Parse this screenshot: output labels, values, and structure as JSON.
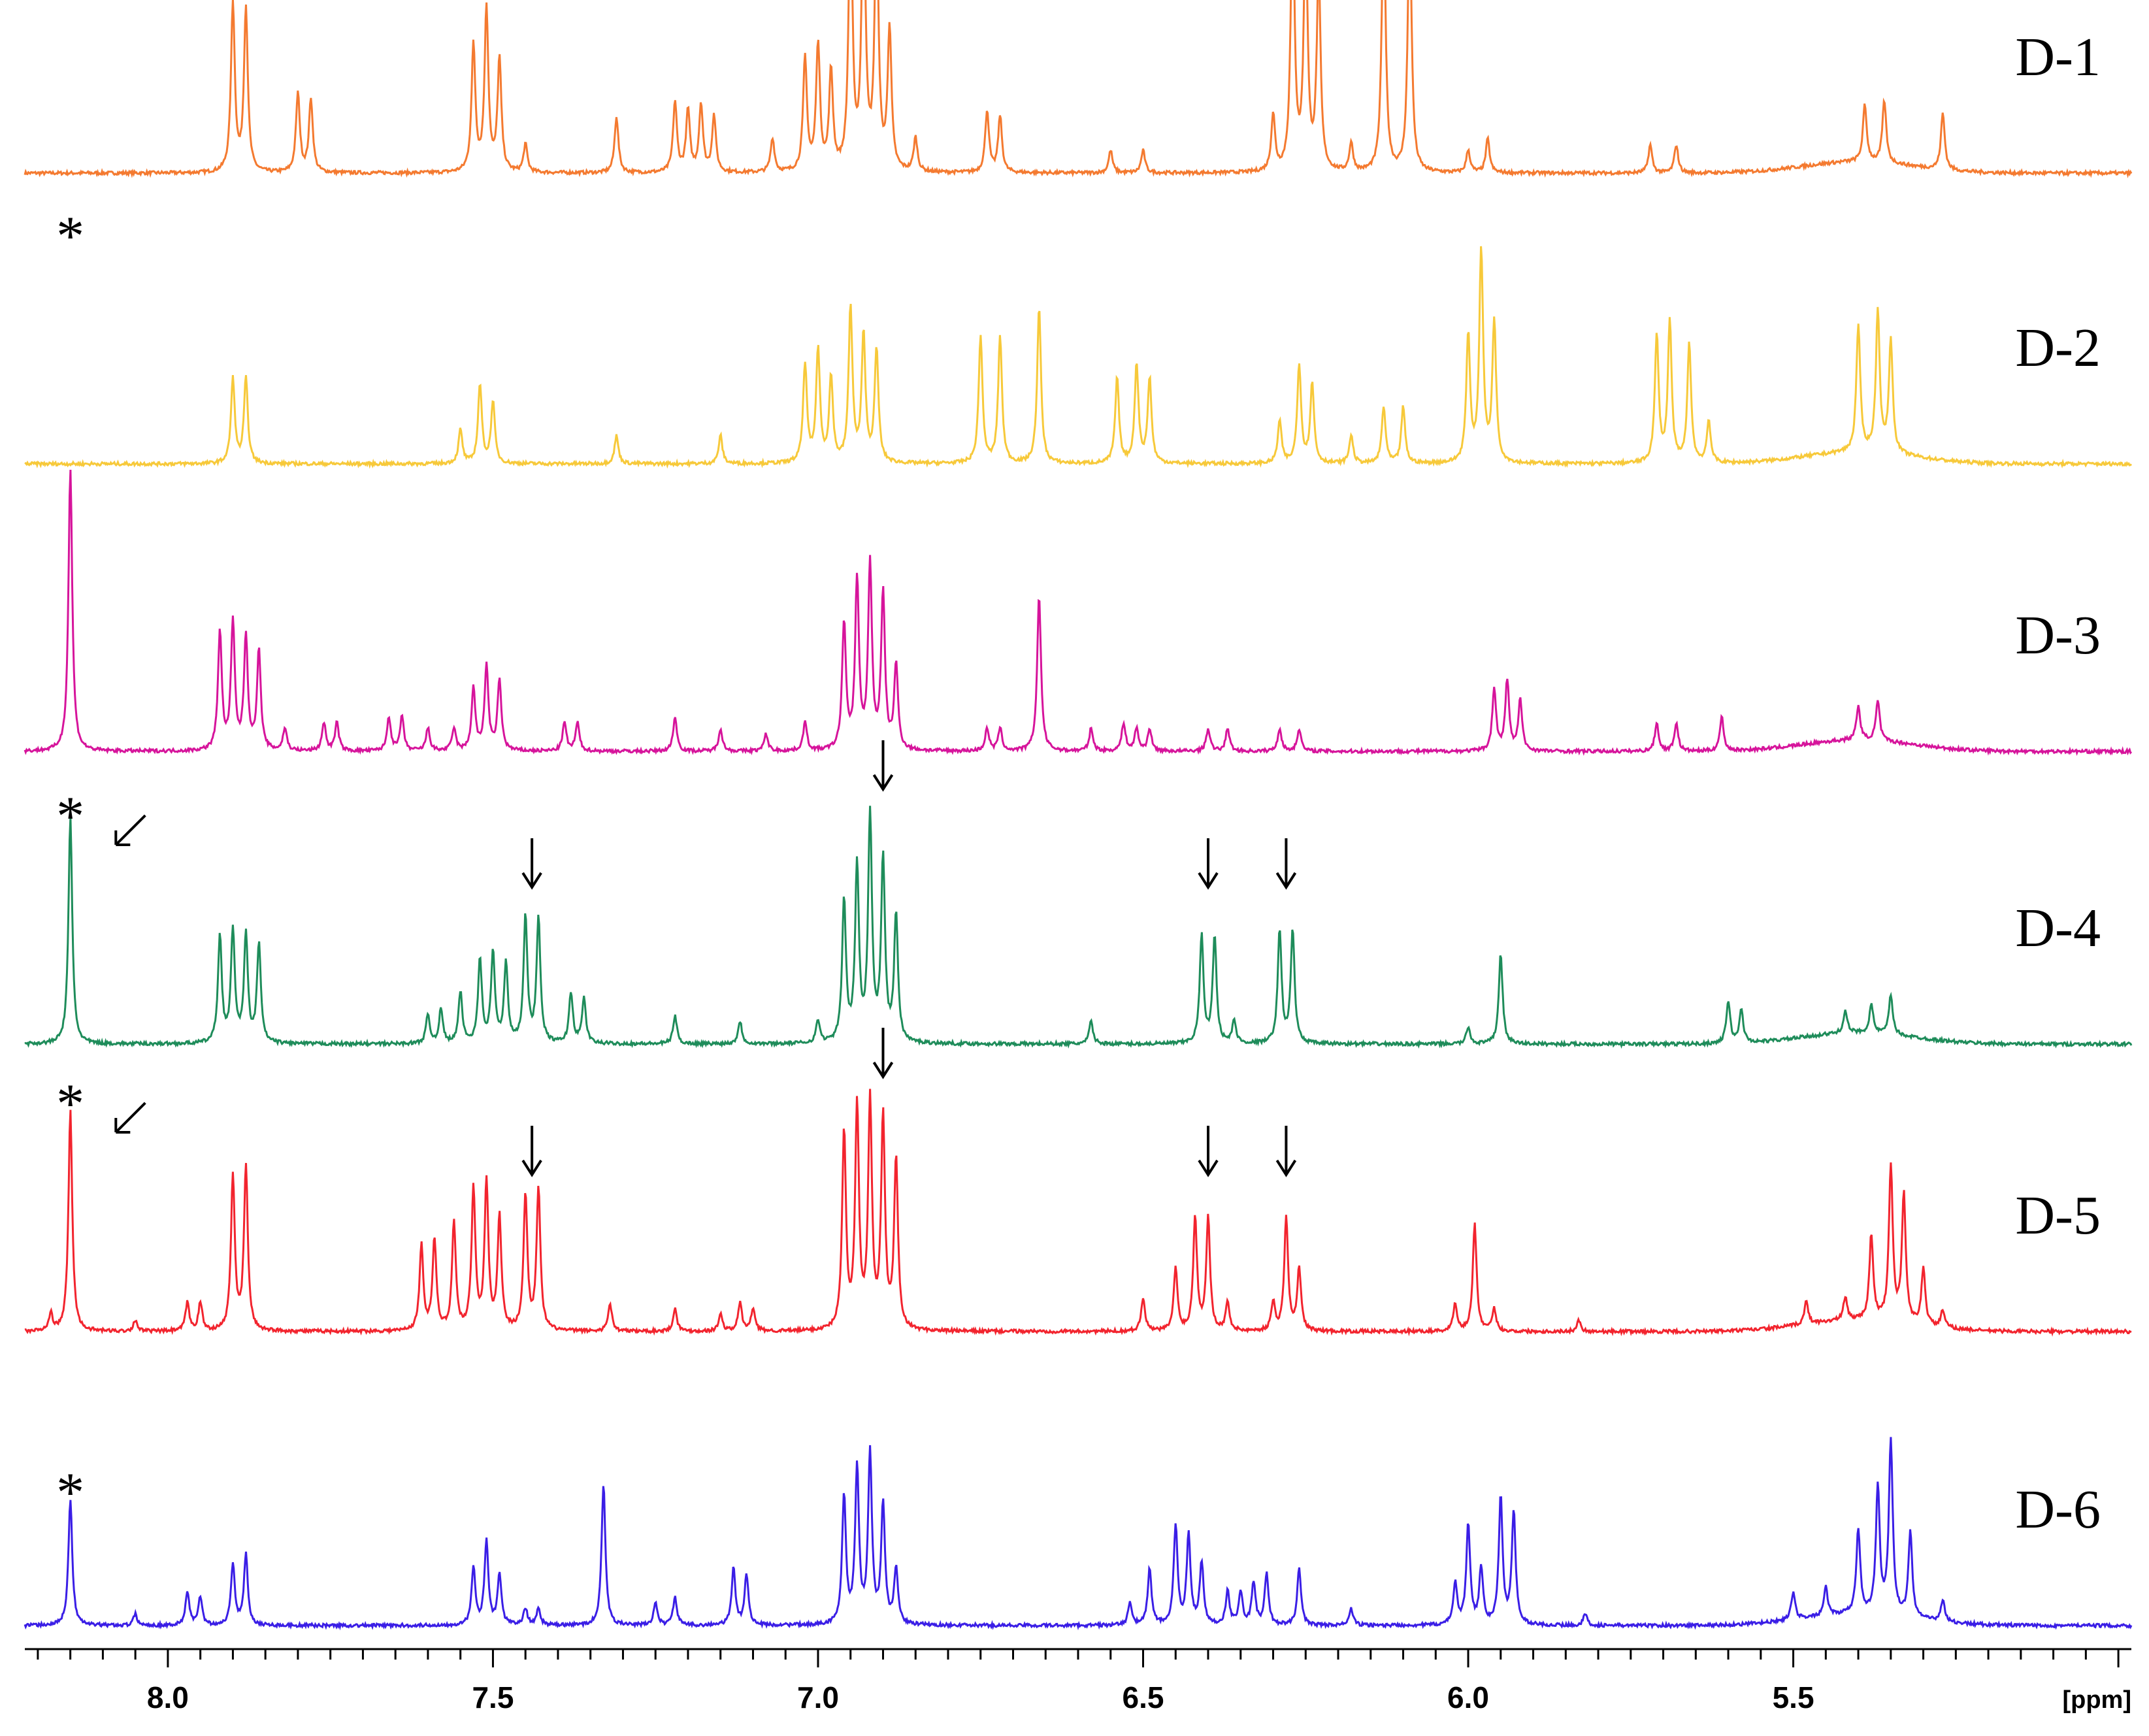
{
  "chart_data": {
    "type": "line",
    "xlabel": "[ppm]",
    "xlim": [
      8.22,
      4.98
    ],
    "x_reversed": true,
    "major_ticks": [
      8.0,
      7.5,
      7.0,
      6.5,
      6.0,
      5.5
    ],
    "major_tick_labels": [
      "8.0",
      "7.5",
      "7.0",
      "6.5",
      "6.0",
      "5.5"
    ],
    "asterisk": "*",
    "series": [
      {
        "name": "D-1",
        "color": "#f47a30",
        "height": 0.3,
        "markers": [],
        "peaks": [
          [
            7.9,
            0.6
          ],
          [
            7.88,
            0.58
          ],
          [
            7.8,
            0.28
          ],
          [
            7.78,
            0.26
          ],
          [
            7.53,
            0.45
          ],
          [
            7.51,
            0.58
          ],
          [
            7.49,
            0.4
          ],
          [
            7.45,
            0.1
          ],
          [
            7.31,
            0.2
          ],
          [
            7.22,
            0.25
          ],
          [
            7.2,
            0.22
          ],
          [
            7.18,
            0.24
          ],
          [
            7.16,
            0.2
          ],
          [
            7.07,
            0.12
          ],
          [
            7.02,
            0.4
          ],
          [
            7.0,
            0.45
          ],
          [
            6.98,
            0.35
          ],
          [
            6.95,
            0.95
          ],
          [
            6.93,
            1.0
          ],
          [
            6.91,
            0.9
          ],
          [
            6.89,
            0.5
          ],
          [
            6.85,
            0.12
          ],
          [
            6.74,
            0.22
          ],
          [
            6.72,
            0.2
          ],
          [
            6.55,
            0.08
          ],
          [
            6.5,
            0.08
          ],
          [
            6.3,
            0.2
          ],
          [
            6.27,
            0.95
          ],
          [
            6.25,
            0.85
          ],
          [
            6.23,
            0.7
          ],
          [
            6.18,
            0.1
          ],
          [
            6.13,
            0.95
          ],
          [
            6.09,
            0.92
          ],
          [
            6.0,
            0.08
          ],
          [
            5.97,
            0.12
          ],
          [
            5.72,
            0.1
          ],
          [
            5.68,
            0.1
          ],
          [
            5.39,
            0.2
          ],
          [
            5.36,
            0.22
          ],
          [
            5.27,
            0.2
          ]
        ]
      },
      {
        "name": "D-2",
        "color": "#f7c93a",
        "height": 0.3,
        "markers": [
          "*"
        ],
        "peaks": [
          [
            7.9,
            0.3
          ],
          [
            7.88,
            0.3
          ],
          [
            7.55,
            0.12
          ],
          [
            7.52,
            0.28
          ],
          [
            7.5,
            0.22
          ],
          [
            7.31,
            0.1
          ],
          [
            7.15,
            0.1
          ],
          [
            7.02,
            0.35
          ],
          [
            7.0,
            0.4
          ],
          [
            6.98,
            0.3
          ],
          [
            6.95,
            0.55
          ],
          [
            6.93,
            0.45
          ],
          [
            6.91,
            0.4
          ],
          [
            6.75,
            0.45
          ],
          [
            6.72,
            0.45
          ],
          [
            6.66,
            0.55
          ],
          [
            6.54,
            0.3
          ],
          [
            6.51,
            0.35
          ],
          [
            6.49,
            0.3
          ],
          [
            6.29,
            0.15
          ],
          [
            6.26,
            0.35
          ],
          [
            6.24,
            0.28
          ],
          [
            6.18,
            0.1
          ],
          [
            6.13,
            0.2
          ],
          [
            6.1,
            0.2
          ],
          [
            6.0,
            0.45
          ],
          [
            5.98,
            0.75
          ],
          [
            5.96,
            0.5
          ],
          [
            5.71,
            0.45
          ],
          [
            5.69,
            0.5
          ],
          [
            5.66,
            0.42
          ],
          [
            5.63,
            0.15
          ],
          [
            5.4,
            0.45
          ],
          [
            5.37,
            0.5
          ],
          [
            5.35,
            0.4
          ]
        ]
      },
      {
        "name": "D-3",
        "color": "#d6149b",
        "height": 0.3,
        "markers": [],
        "peaks": [
          [
            8.15,
            1.0
          ],
          [
            7.92,
            0.42
          ],
          [
            7.9,
            0.45
          ],
          [
            7.88,
            0.4
          ],
          [
            7.86,
            0.35
          ],
          [
            7.82,
            0.08
          ],
          [
            7.76,
            0.1
          ],
          [
            7.74,
            0.1
          ],
          [
            7.66,
            0.12
          ],
          [
            7.64,
            0.12
          ],
          [
            7.6,
            0.08
          ],
          [
            7.56,
            0.08
          ],
          [
            7.53,
            0.22
          ],
          [
            7.51,
            0.3
          ],
          [
            7.49,
            0.25
          ],
          [
            7.39,
            0.1
          ],
          [
            7.37,
            0.1
          ],
          [
            7.22,
            0.12
          ],
          [
            7.15,
            0.08
          ],
          [
            7.08,
            0.06
          ],
          [
            7.02,
            0.1
          ],
          [
            6.96,
            0.45
          ],
          [
            6.94,
            0.6
          ],
          [
            6.92,
            0.65
          ],
          [
            6.9,
            0.55
          ],
          [
            6.88,
            0.3
          ],
          [
            6.74,
            0.08
          ],
          [
            6.72,
            0.08
          ],
          [
            6.66,
            0.55
          ],
          [
            6.58,
            0.08
          ],
          [
            6.53,
            0.1
          ],
          [
            6.51,
            0.08
          ],
          [
            6.49,
            0.08
          ],
          [
            6.4,
            0.08
          ],
          [
            6.37,
            0.08
          ],
          [
            6.29,
            0.08
          ],
          [
            6.26,
            0.08
          ],
          [
            5.96,
            0.22
          ],
          [
            5.94,
            0.25
          ],
          [
            5.92,
            0.18
          ],
          [
            5.71,
            0.1
          ],
          [
            5.68,
            0.1
          ],
          [
            5.61,
            0.12
          ],
          [
            5.4,
            0.12
          ],
          [
            5.37,
            0.14
          ]
        ]
      },
      {
        "name": "D-4",
        "color": "#1e8c5a",
        "height": 0.3,
        "markers": [
          "*",
          "arrow-diag",
          "arrow"
        ],
        "arrows_at": [
          7.44,
          6.9,
          6.4,
          6.28
        ],
        "peaks": [
          [
            8.15,
            0.8
          ],
          [
            7.92,
            0.38
          ],
          [
            7.9,
            0.4
          ],
          [
            7.88,
            0.38
          ],
          [
            7.86,
            0.35
          ],
          [
            7.6,
            0.1
          ],
          [
            7.58,
            0.12
          ],
          [
            7.55,
            0.18
          ],
          [
            7.52,
            0.3
          ],
          [
            7.5,
            0.32
          ],
          [
            7.48,
            0.28
          ],
          [
            7.45,
            0.45
          ],
          [
            7.43,
            0.44
          ],
          [
            7.38,
            0.18
          ],
          [
            7.36,
            0.16
          ],
          [
            7.22,
            0.1
          ],
          [
            7.12,
            0.08
          ],
          [
            7.0,
            0.08
          ],
          [
            6.96,
            0.5
          ],
          [
            6.94,
            0.62
          ],
          [
            6.92,
            0.8
          ],
          [
            6.9,
            0.65
          ],
          [
            6.88,
            0.45
          ],
          [
            6.58,
            0.08
          ],
          [
            6.41,
            0.38
          ],
          [
            6.39,
            0.38
          ],
          [
            6.36,
            0.08
          ],
          [
            6.29,
            0.4
          ],
          [
            6.27,
            0.4
          ],
          [
            6.0,
            0.06
          ],
          [
            5.95,
            0.32
          ],
          [
            5.6,
            0.15
          ],
          [
            5.58,
            0.12
          ],
          [
            5.42,
            0.08
          ],
          [
            5.38,
            0.1
          ],
          [
            5.35,
            0.14
          ]
        ]
      },
      {
        "name": "D-5",
        "color": "#f2242e",
        "height": 0.3,
        "markers": [
          "*",
          "arrow-diag",
          "arrow"
        ],
        "arrows_at": [
          7.44,
          6.9,
          6.4,
          6.28
        ],
        "peaks": [
          [
            8.18,
            0.06
          ],
          [
            8.15,
            0.78
          ],
          [
            8.05,
            0.04
          ],
          [
            7.97,
            0.1
          ],
          [
            7.95,
            0.1
          ],
          [
            7.9,
            0.55
          ],
          [
            7.88,
            0.58
          ],
          [
            7.61,
            0.3
          ],
          [
            7.59,
            0.32
          ],
          [
            7.56,
            0.38
          ],
          [
            7.53,
            0.5
          ],
          [
            7.51,
            0.52
          ],
          [
            7.49,
            0.4
          ],
          [
            7.45,
            0.48
          ],
          [
            7.43,
            0.5
          ],
          [
            7.32,
            0.1
          ],
          [
            7.22,
            0.08
          ],
          [
            7.15,
            0.06
          ],
          [
            7.12,
            0.1
          ],
          [
            7.1,
            0.08
          ],
          [
            6.96,
            0.7
          ],
          [
            6.94,
            0.78
          ],
          [
            6.92,
            0.8
          ],
          [
            6.9,
            0.75
          ],
          [
            6.88,
            0.6
          ],
          [
            6.5,
            0.12
          ],
          [
            6.45,
            0.22
          ],
          [
            6.42,
            0.4
          ],
          [
            6.4,
            0.4
          ],
          [
            6.37,
            0.1
          ],
          [
            6.3,
            0.1
          ],
          [
            6.28,
            0.4
          ],
          [
            6.26,
            0.22
          ],
          [
            6.02,
            0.1
          ],
          [
            5.99,
            0.38
          ],
          [
            5.96,
            0.08
          ],
          [
            5.83,
            0.04
          ],
          [
            5.48,
            0.08
          ],
          [
            5.42,
            0.08
          ],
          [
            5.38,
            0.3
          ],
          [
            5.35,
            0.55
          ],
          [
            5.33,
            0.45
          ],
          [
            5.3,
            0.2
          ],
          [
            5.27,
            0.06
          ]
        ]
      },
      {
        "name": "D-6",
        "color": "#3a1ee6",
        "height": 0.3,
        "markers": [
          "*"
        ],
        "peaks": [
          [
            8.15,
            0.45
          ],
          [
            8.05,
            0.04
          ],
          [
            7.97,
            0.12
          ],
          [
            7.95,
            0.1
          ],
          [
            7.9,
            0.22
          ],
          [
            7.88,
            0.25
          ],
          [
            7.53,
            0.2
          ],
          [
            7.51,
            0.3
          ],
          [
            7.49,
            0.18
          ],
          [
            7.45,
            0.06
          ],
          [
            7.43,
            0.06
          ],
          [
            7.33,
            0.5
          ],
          [
            7.25,
            0.08
          ],
          [
            7.22,
            0.1
          ],
          [
            7.13,
            0.2
          ],
          [
            7.11,
            0.18
          ],
          [
            6.96,
            0.45
          ],
          [
            6.94,
            0.55
          ],
          [
            6.92,
            0.6
          ],
          [
            6.9,
            0.42
          ],
          [
            6.88,
            0.2
          ],
          [
            6.52,
            0.08
          ],
          [
            6.49,
            0.2
          ],
          [
            6.45,
            0.35
          ],
          [
            6.43,
            0.32
          ],
          [
            6.41,
            0.22
          ],
          [
            6.37,
            0.12
          ],
          [
            6.35,
            0.12
          ],
          [
            6.33,
            0.15
          ],
          [
            6.31,
            0.18
          ],
          [
            6.26,
            0.2
          ],
          [
            6.18,
            0.06
          ],
          [
            6.02,
            0.15
          ],
          [
            6.0,
            0.36
          ],
          [
            5.98,
            0.2
          ],
          [
            5.95,
            0.45
          ],
          [
            5.93,
            0.4
          ],
          [
            5.82,
            0.04
          ],
          [
            5.5,
            0.1
          ],
          [
            5.45,
            0.1
          ],
          [
            5.4,
            0.3
          ],
          [
            5.37,
            0.45
          ],
          [
            5.35,
            0.62
          ],
          [
            5.32,
            0.3
          ],
          [
            5.27,
            0.08
          ]
        ]
      }
    ]
  }
}
